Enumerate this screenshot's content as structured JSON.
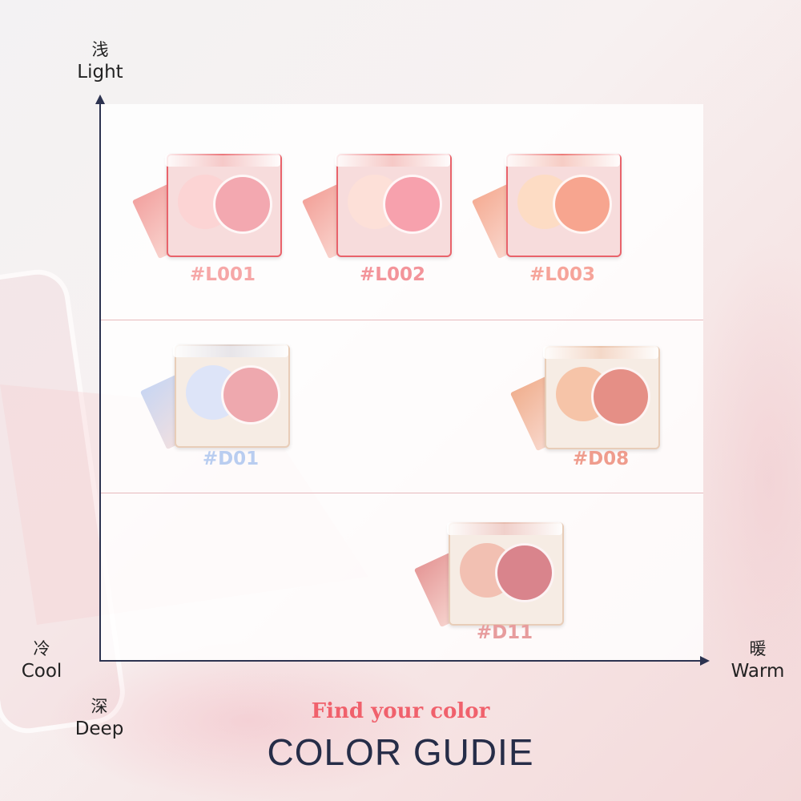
{
  "axes": {
    "top": {
      "zh": "浅",
      "en": "Light"
    },
    "left": {
      "zh": "冷",
      "en": "Cool"
    },
    "bottom": {
      "zh": "深",
      "en": "Deep"
    },
    "right": {
      "zh": "暖",
      "en": "Warm"
    },
    "axis_color": "#2c3350"
  },
  "palettes": [
    {
      "code": "#L001",
      "label_color": "#f6a7a7",
      "frame": "#f7dcdc",
      "case_edge": "#e9636b",
      "pan_a": "#fcd4d4",
      "pan_b": "#f3a8b0",
      "refill": "#f2a2a0"
    },
    {
      "code": "#L002",
      "label_color": "#f3949a",
      "frame": "#f7dcdc",
      "case_edge": "#e9636b",
      "pan_a": "#fde0d8",
      "pan_b": "#f7a1ad",
      "refill": "#f3a29a"
    },
    {
      "code": "#L003",
      "label_color": "#f6a49a",
      "frame": "#f7dcdc",
      "case_edge": "#e9636b",
      "pan_a": "#fddcc4",
      "pan_b": "#f7a58f",
      "refill": "#f5ad95"
    },
    {
      "code": "#D01",
      "label_color": "#b9cdf0",
      "frame": "#f6ece4",
      "case_edge": "#e8cdb8",
      "pan_a": "#dde4f8",
      "pan_b": "#eea8ae",
      "refill": "#c9d6f2"
    },
    {
      "code": "#D08",
      "label_color": "#ef9c8d",
      "frame": "#f6ece4",
      "case_edge": "#e8cdb8",
      "pan_a": "#f6c4a8",
      "pan_b": "#e58f86",
      "refill": "#f0b090"
    },
    {
      "code": "#D11",
      "label_color": "#e79c9d",
      "frame": "#f6ece4",
      "case_edge": "#e8cdb8",
      "pan_a": "#f2c0b2",
      "pan_b": "#d9848c",
      "refill": "#e59897"
    }
  ],
  "footer": {
    "tagline": "Find your color",
    "title": "COLOR GUDIE",
    "tagline_color": "#f0616c",
    "title_color": "#262d48"
  }
}
